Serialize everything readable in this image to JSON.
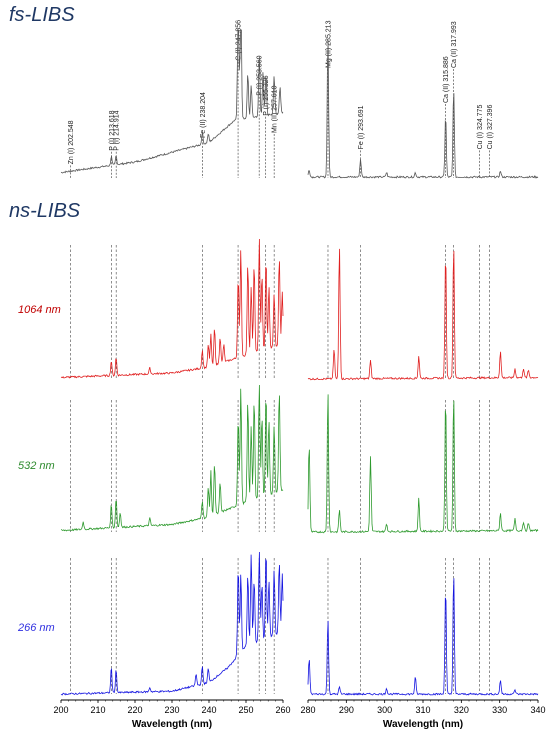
{
  "headings": {
    "fs": "fs-LIBS",
    "ns": "ns-LIBS"
  },
  "row_labels": {
    "r1064": "1064 nm",
    "r532": "532 nm",
    "r266": "266 nm"
  },
  "colors": {
    "fs": "#555555",
    "r1064": "#e02020",
    "r532": "#2e9a2e",
    "r266": "#1515e0",
    "label1064": "#c00000",
    "label532": "#2e8b2e",
    "label266": "#3030e0",
    "heading": "#1f3864"
  },
  "chart_data": {
    "type": "line",
    "xlabel": "Wavelength (nm)",
    "panels": [
      {
        "name": "left",
        "xlim": [
          200,
          260
        ],
        "xticks": [
          200,
          210,
          220,
          230,
          240,
          250,
          260
        ]
      },
      {
        "name": "right",
        "xlim": [
          280,
          340
        ],
        "xticks": [
          280,
          290,
          300,
          310,
          320,
          330,
          340
        ]
      }
    ],
    "annotations": [
      {
        "label": "Zn (I) 202.548",
        "x": 202.548,
        "panel": "left"
      },
      {
        "label": "P (I) 213.618",
        "x": 213.618,
        "panel": "left"
      },
      {
        "label": "P (I) 214.914",
        "x": 214.914,
        "panel": "left"
      },
      {
        "label": "Fe (II) 238.204",
        "x": 238.204,
        "panel": "left"
      },
      {
        "label": "C (I) 247.856",
        "x": 247.856,
        "panel": "left"
      },
      {
        "label": "P (I) 253.560",
        "x": 253.56,
        "panel": "left"
      },
      {
        "label": "P (I) 255.326",
        "x": 255.326,
        "panel": "left"
      },
      {
        "label": "Mn (II) 257.610",
        "x": 257.61,
        "panel": "left"
      },
      {
        "label": "Mg (II) 285.213",
        "x": 285.213,
        "panel": "right"
      },
      {
        "label": "Fe (I) 293.691",
        "x": 293.691,
        "panel": "right"
      },
      {
        "label": "Ca (II) 315.886",
        "x": 315.886,
        "panel": "right"
      },
      {
        "label": "Ca (II) 317.993",
        "x": 317.993,
        "panel": "right"
      },
      {
        "label": "Cu (I) 324.775",
        "x": 324.775,
        "panel": "right"
      },
      {
        "label": "Cu (I) 327.396",
        "x": 327.396,
        "panel": "right"
      }
    ],
    "series": [
      {
        "name": "fs",
        "left": {
          "baseline": [
            [
              200,
              0.05
            ],
            [
              220,
              0.12
            ],
            [
              240,
              0.25
            ],
            [
              247,
              0.4
            ],
            [
              260,
              0.45
            ]
          ],
          "peaks": [
            [
              213.6,
              0.06
            ],
            [
              214.9,
              0.06
            ],
            [
              238.2,
              0.08
            ],
            [
              239.8,
              0.06
            ],
            [
              247.9,
              0.95
            ],
            [
              248.6,
              0.85
            ],
            [
              250.5,
              0.3
            ],
            [
              251.4,
              0.22
            ],
            [
              253.6,
              0.4
            ],
            [
              254.6,
              0.3
            ],
            [
              255.4,
              0.28
            ],
            [
              257.6,
              0.25
            ],
            [
              259.2,
              0.18
            ]
          ]
        },
        "right": {
          "baseline": [
            [
              280,
              0.02
            ],
            [
              340,
              0.02
            ]
          ],
          "peaks": [
            [
              280.3,
              0.05
            ],
            [
              285.2,
              0.95
            ],
            [
              293.7,
              0.12
            ],
            [
              300.5,
              0.03
            ],
            [
              308,
              0.03
            ],
            [
              315.9,
              0.42
            ],
            [
              318,
              0.6
            ],
            [
              330.2,
              0.04
            ]
          ]
        }
      },
      {
        "name": "1064 nm",
        "left": {
          "baseline": [
            [
              200,
              0.03
            ],
            [
              230,
              0.06
            ],
            [
              240,
              0.1
            ],
            [
              250,
              0.18
            ],
            [
              260,
              0.25
            ]
          ],
          "peaks": [
            [
              213.6,
              0.1
            ],
            [
              214.9,
              0.12
            ],
            [
              224,
              0.04
            ],
            [
              238.2,
              0.12
            ],
            [
              239.8,
              0.15
            ],
            [
              240.5,
              0.22
            ],
            [
              241.5,
              0.25
            ],
            [
              243,
              0.18
            ],
            [
              244,
              0.12
            ],
            [
              247.9,
              0.55
            ],
            [
              248.6,
              0.72
            ],
            [
              250.5,
              0.62
            ],
            [
              251.4,
              0.45
            ],
            [
              252.2,
              0.6
            ],
            [
              253.6,
              0.75
            ],
            [
              254.3,
              0.52
            ],
            [
              255.4,
              0.62
            ],
            [
              256.2,
              0.42
            ],
            [
              257.6,
              0.36
            ],
            [
              259,
              0.6
            ],
            [
              259.8,
              0.36
            ]
          ]
        },
        "right": {
          "baseline": [
            [
              280,
              0.02
            ],
            [
              340,
              0.03
            ]
          ],
          "peaks": [
            [
              286.8,
              0.2
            ],
            [
              288.2,
              0.9
            ],
            [
              296.3,
              0.12
            ],
            [
              308.9,
              0.15
            ],
            [
              315.9,
              0.85
            ],
            [
              318,
              0.9
            ],
            [
              330.2,
              0.18
            ],
            [
              334,
              0.06
            ],
            [
              336.2,
              0.06
            ],
            [
              337.5,
              0.05
            ]
          ]
        }
      },
      {
        "name": "532 nm",
        "left": {
          "baseline": [
            [
              200,
              0.03
            ],
            [
              230,
              0.07
            ],
            [
              240,
              0.12
            ],
            [
              250,
              0.22
            ],
            [
              260,
              0.3
            ]
          ],
          "peaks": [
            [
              206,
              0.05
            ],
            [
              213.6,
              0.16
            ],
            [
              214.9,
              0.2
            ],
            [
              216,
              0.1
            ],
            [
              224,
              0.05
            ],
            [
              238.2,
              0.12
            ],
            [
              239.8,
              0.2
            ],
            [
              240.5,
              0.3
            ],
            [
              241.5,
              0.35
            ],
            [
              243,
              0.2
            ],
            [
              247.9,
              0.6
            ],
            [
              248.6,
              0.78
            ],
            [
              250.5,
              0.68
            ],
            [
              251.4,
              0.5
            ],
            [
              252.2,
              0.68
            ],
            [
              253.6,
              0.8
            ],
            [
              254.3,
              0.55
            ],
            [
              255.4,
              0.7
            ],
            [
              256.2,
              0.5
            ],
            [
              257.6,
              0.45
            ],
            [
              259,
              0.68
            ]
          ]
        },
        "right": {
          "baseline": [
            [
              280,
              0.02
            ],
            [
              340,
              0.03
            ]
          ],
          "peaks": [
            [
              280.3,
              0.6
            ],
            [
              285.2,
              0.95
            ],
            [
              288.2,
              0.15
            ],
            [
              296.3,
              0.5
            ],
            [
              300.5,
              0.05
            ],
            [
              308.9,
              0.22
            ],
            [
              315.9,
              0.9
            ],
            [
              318,
              0.92
            ],
            [
              330.2,
              0.12
            ],
            [
              334,
              0.08
            ],
            [
              336.2,
              0.06
            ],
            [
              337.5,
              0.05
            ]
          ]
        }
      },
      {
        "name": "266 nm",
        "left": {
          "baseline": [
            [
              200,
              0.02
            ],
            [
              230,
              0.04
            ],
            [
              240,
              0.1
            ],
            [
              245,
              0.2
            ],
            [
              250,
              0.35
            ],
            [
              260,
              0.45
            ]
          ],
          "peaks": [
            [
              213.6,
              0.18
            ],
            [
              214.9,
              0.16
            ],
            [
              224,
              0.03
            ],
            [
              236.5,
              0.08
            ],
            [
              238.2,
              0.12
            ],
            [
              239.8,
              0.1
            ],
            [
              247.9,
              0.62
            ],
            [
              248.6,
              0.55
            ],
            [
              250.5,
              0.5
            ],
            [
              251.4,
              0.62
            ],
            [
              252.2,
              0.45
            ],
            [
              253.6,
              0.62
            ],
            [
              254.3,
              0.4
            ],
            [
              255.4,
              0.62
            ],
            [
              256.2,
              0.4
            ],
            [
              257.6,
              0.45
            ],
            [
              259,
              0.5
            ],
            [
              259.8,
              0.4
            ]
          ]
        },
        "right": {
          "baseline": [
            [
              280,
              0.02
            ],
            [
              340,
              0.02
            ]
          ],
          "peaks": [
            [
              280.3,
              0.25
            ],
            [
              285.2,
              0.52
            ],
            [
              288.2,
              0.05
            ],
            [
              300.5,
              0.04
            ],
            [
              308,
              0.12
            ],
            [
              315.9,
              0.75
            ],
            [
              318,
              0.85
            ],
            [
              330.2,
              0.1
            ],
            [
              334,
              0.03
            ]
          ]
        }
      }
    ]
  }
}
